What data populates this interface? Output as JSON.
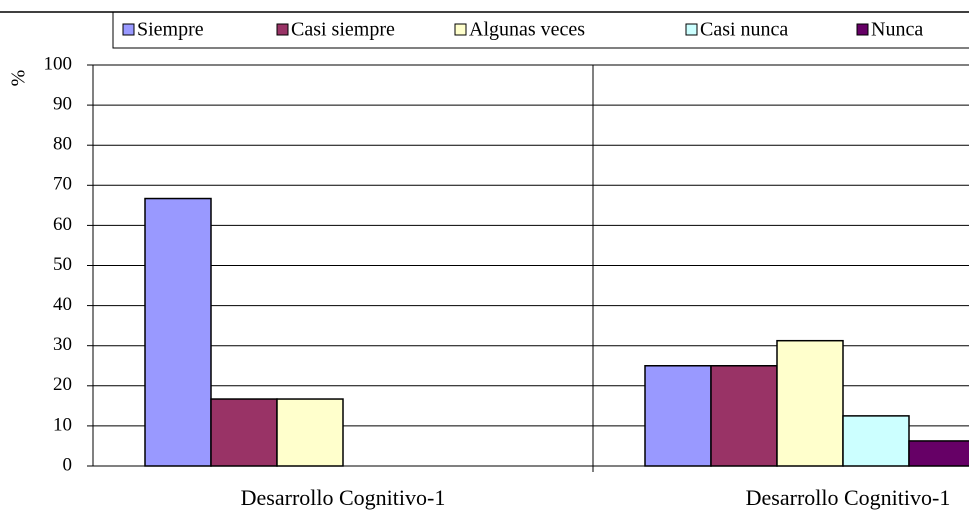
{
  "chart_data": {
    "type": "bar",
    "y_label": "%",
    "categories": [
      "Desarrollo Cognitivo-1",
      "Desarrollo Cognitivo-1"
    ],
    "series": [
      {
        "name": "Siempre",
        "color": "#9999ff",
        "values": [
          66.7,
          25
        ]
      },
      {
        "name": "Casi siempre",
        "color": "#993366",
        "values": [
          16.7,
          25
        ]
      },
      {
        "name": "Algunas veces",
        "color": "#ffffcc",
        "values": [
          16.7,
          31.25
        ]
      },
      {
        "name": "Casi nunca",
        "color": "#ccffff",
        "values": [
          0,
          12.5
        ]
      },
      {
        "name": "Nunca",
        "color": "#660066",
        "values": [
          0,
          6.25
        ]
      }
    ],
    "ylim": [
      0,
      100
    ],
    "yticks": [
      0,
      10,
      20,
      30,
      40,
      50,
      60,
      70,
      80,
      90,
      100
    ],
    "grid": true,
    "legend": "top"
  }
}
